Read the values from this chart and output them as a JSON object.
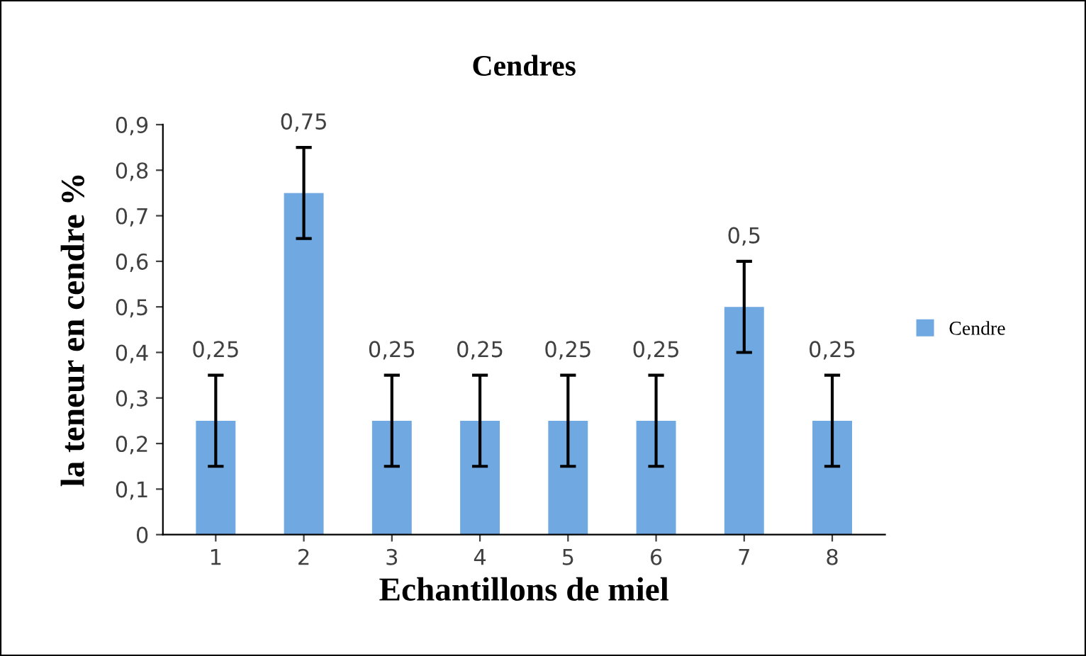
{
  "chart_data": {
    "type": "bar",
    "title": "Cendres",
    "xlabel": "Echantillons de miel",
    "ylabel": "la teneur en cendre %",
    "categories": [
      "1",
      "2",
      "3",
      "4",
      "5",
      "6",
      "7",
      "8"
    ],
    "series": [
      {
        "name": "Cendre",
        "color": "#70a8e2",
        "values": [
          0.25,
          0.75,
          0.25,
          0.25,
          0.25,
          0.25,
          0.5,
          0.25
        ],
        "errors": [
          0.1,
          0.1,
          0.1,
          0.1,
          0.1,
          0.1,
          0.1,
          0.1
        ],
        "value_labels": [
          "0,25",
          "0,75",
          "0,25",
          "0,25",
          "0,25",
          "0,25",
          "0,5",
          "0,25"
        ]
      }
    ],
    "ylim": [
      0,
      0.9
    ],
    "yticks": [
      0,
      {
        "value": 0.1,
        "label": "0,1"
      },
      {
        "value": 0.2,
        "label": "0,2"
      },
      {
        "value": 0.3,
        "label": "0,3"
      },
      {
        "value": 0.4,
        "label": "0,4"
      },
      {
        "value": 0.5,
        "label": "0,5"
      },
      {
        "value": 0.6,
        "label": "0,6"
      },
      {
        "value": 0.7,
        "label": "0,7"
      },
      {
        "value": 0.8,
        "label": "0,8"
      },
      {
        "value": 0.9,
        "label": "0,9"
      }
    ],
    "grid": false,
    "legend": "right"
  }
}
